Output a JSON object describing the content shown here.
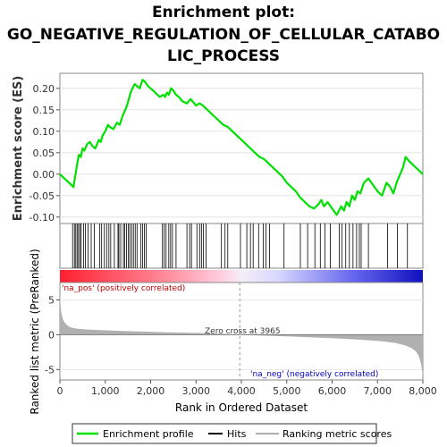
{
  "title_line1": "Enrichment plot:",
  "title_line2": "GO_NEGATIVE_REGULATION_OF_CELLULAR_CATABO",
  "title_line3": "LIC_PROCESS",
  "colors": {
    "es_line": "#00e000",
    "hits": "#000000",
    "metric_fill": "#b0b0b0",
    "pos_label": "#c00000",
    "neg_label": "#0000c0",
    "zero_line": "#999999"
  },
  "chart_data": [
    {
      "type": "line",
      "name": "enrichment-profile",
      "ylabel": "Enrichment score (ES)",
      "xlim": [
        0,
        8000
      ],
      "ylim": [
        -0.115,
        0.235
      ],
      "yticks": [
        "0.20",
        "0.15",
        "0.10",
        "0.05",
        "0.00",
        "-0.05",
        "-0.10"
      ],
      "ytick_values": [
        0.2,
        0.15,
        0.1,
        0.05,
        0.0,
        -0.05,
        -0.1
      ],
      "x": [
        0,
        300,
        330,
        360,
        390,
        420,
        460,
        500,
        540,
        600,
        660,
        720,
        780,
        860,
        900,
        940,
        1000,
        1060,
        1100,
        1180,
        1260,
        1320,
        1380,
        1440,
        1480,
        1520,
        1560,
        1600,
        1650,
        1700,
        1760,
        1820,
        1880,
        1940,
        2000,
        2100,
        2200,
        2280,
        2320,
        2360,
        2400,
        2450,
        2500,
        2560,
        2620,
        2700,
        2800,
        2880,
        2920,
        3000,
        3080,
        3150,
        3200,
        3300,
        3400,
        3500,
        3600,
        3700,
        3800,
        3900,
        4000,
        4100,
        4200,
        4300,
        4400,
        4500,
        4600,
        4700,
        4800,
        4900,
        5000,
        5100,
        5200,
        5300,
        5400,
        5500,
        5600,
        5700,
        5760,
        5820,
        5900,
        6000,
        6100,
        6200,
        6260,
        6320,
        6380,
        6440,
        6500,
        6560,
        6620,
        6700,
        6800,
        6900,
        7000,
        7100,
        7200,
        7280,
        7350,
        7420,
        7500,
        7560,
        7620,
        7700,
        7800,
        7900,
        8000
      ],
      "y": [
        0.0,
        -0.03,
        -0.01,
        0.01,
        0.03,
        0.045,
        0.04,
        0.06,
        0.055,
        0.07,
        0.075,
        0.065,
        0.06,
        0.08,
        0.075,
        0.09,
        0.1,
        0.115,
        0.11,
        0.105,
        0.12,
        0.115,
        0.135,
        0.15,
        0.16,
        0.175,
        0.19,
        0.2,
        0.21,
        0.205,
        0.2,
        0.22,
        0.215,
        0.205,
        0.2,
        0.19,
        0.18,
        0.185,
        0.18,
        0.19,
        0.185,
        0.2,
        0.195,
        0.185,
        0.18,
        0.17,
        0.165,
        0.175,
        0.17,
        0.16,
        0.165,
        0.16,
        0.155,
        0.145,
        0.135,
        0.125,
        0.115,
        0.11,
        0.1,
        0.09,
        0.08,
        0.07,
        0.06,
        0.05,
        0.04,
        0.035,
        0.025,
        0.015,
        0.005,
        -0.005,
        -0.02,
        -0.03,
        -0.04,
        -0.055,
        -0.065,
        -0.075,
        -0.08,
        -0.07,
        -0.06,
        -0.075,
        -0.065,
        -0.08,
        -0.095,
        -0.075,
        -0.085,
        -0.065,
        -0.075,
        -0.05,
        -0.06,
        -0.04,
        -0.045,
        -0.02,
        -0.01,
        -0.025,
        -0.04,
        -0.05,
        -0.02,
        -0.03,
        -0.045,
        -0.02,
        0.0,
        0.015,
        0.04,
        0.03,
        0.02,
        0.01,
        0.0
      ]
    },
    {
      "type": "scatter",
      "name": "hits",
      "x": [
        280,
        320,
        350,
        380,
        410,
        440,
        470,
        520,
        560,
        620,
        690,
        760,
        880,
        920,
        980,
        1030,
        1080,
        1120,
        1200,
        1280,
        1300,
        1340,
        1400,
        1430,
        1470,
        1510,
        1540,
        1580,
        1620,
        1660,
        1700,
        1780,
        1820,
        1860,
        1900,
        2260,
        2300,
        2340,
        2400,
        2440,
        2480,
        2560,
        2800,
        2860,
        2900,
        3020,
        3080,
        3120,
        3160,
        3220,
        3560,
        3640,
        3700,
        3980,
        4120,
        4200,
        4260,
        4380,
        4480,
        4540,
        4620,
        4940,
        5300,
        5460,
        5620,
        5740,
        5840,
        5960,
        6160,
        6220,
        6300,
        6380,
        6460,
        6540,
        6600,
        6640,
        6800,
        7220,
        7440,
        7660
      ]
    },
    {
      "type": "area",
      "name": "ranking-metric-scores",
      "ylabel": "Ranked list metric (PreRanked)",
      "xlabel": "Rank in Ordered Dataset",
      "xlim": [
        0,
        8000
      ],
      "ylim": [
        -6.5,
        7.5
      ],
      "yticks": [
        "5",
        "0",
        "-5"
      ],
      "ytick_values": [
        5,
        0,
        -5
      ],
      "xticks": [
        "0",
        "1,000",
        "2,000",
        "3,000",
        "4,000",
        "5,000",
        "6,000",
        "7,000",
        "8,000"
      ],
      "xtick_values": [
        0,
        1000,
        2000,
        3000,
        4000,
        5000,
        6000,
        7000,
        8000
      ],
      "x": [
        0,
        10,
        30,
        60,
        100,
        150,
        220,
        300,
        400,
        600,
        900,
        1300,
        1800,
        2400,
        3000,
        3600,
        3965,
        4400,
        5000,
        5600,
        6200,
        6700,
        7100,
        7400,
        7600,
        7750,
        7850,
        7920,
        7960,
        7990,
        8000
      ],
      "y": [
        6.2,
        4.5,
        3.2,
        2.3,
        1.8,
        1.4,
        1.1,
        0.95,
        0.85,
        0.75,
        0.65,
        0.55,
        0.45,
        0.35,
        0.25,
        0.12,
        0.0,
        -0.12,
        -0.25,
        -0.4,
        -0.55,
        -0.75,
        -0.95,
        -1.2,
        -1.5,
        -1.9,
        -2.4,
        -3.2,
        -4.2,
        -5.5,
        -6.2
      ]
    }
  ],
  "annotations": {
    "pos_label": "'na_pos' (positively correlated)",
    "neg_label": "'na_neg' (negatively correlated)",
    "zero_cross": "Zero cross at 3965",
    "zero_cross_value": 3965
  },
  "legend": {
    "items": [
      {
        "label": "Enrichment profile",
        "color": "#00e000"
      },
      {
        "label": "Hits",
        "color": "#000000"
      },
      {
        "label": "Ranking metric scores",
        "color": "#b0b0b0"
      }
    ]
  }
}
